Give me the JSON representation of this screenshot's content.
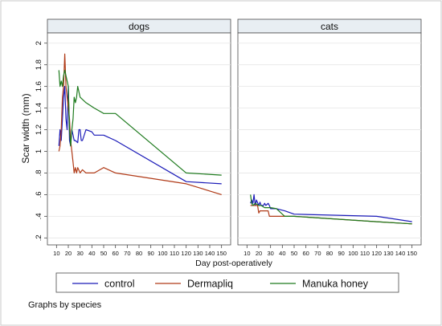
{
  "chart_data": {
    "type": "line",
    "ylabel": "Scar width (mm)",
    "xlabel": "Day post-operatively",
    "note": "Graphs by species",
    "xlim": [
      10,
      150
    ],
    "ylim": [
      0.2,
      2.0
    ],
    "x_ticks": [
      10,
      20,
      30,
      40,
      50,
      60,
      70,
      80,
      90,
      100,
      110,
      120,
      130,
      140,
      150
    ],
    "y_ticks": [
      0.2,
      0.4,
      0.6,
      0.8,
      1.0,
      1.2,
      1.4,
      1.6,
      1.8,
      2.0
    ],
    "y_tick_labels": [
      ".2",
      ".4",
      ".6",
      ".8",
      "1",
      "1.2",
      "1.4",
      "1.6",
      "1.8",
      "2"
    ],
    "grid": true,
    "legend_position": "bottom",
    "series_styles": [
      {
        "name": "control",
        "color": "#1a1ab8"
      },
      {
        "name": "Dermapliq",
        "color": "#b03a17"
      },
      {
        "name": "Manuka honey",
        "color": "#1d7a1d"
      }
    ],
    "panels": [
      {
        "title": "dogs",
        "series": [
          {
            "name": "control",
            "points": [
              [
                12,
                1.05
              ],
              [
                13,
                1.2
              ],
              [
                14,
                1.1
              ],
              [
                15,
                1.3
              ],
              [
                16,
                1.5
              ],
              [
                17,
                1.6
              ],
              [
                18,
                1.3
              ],
              [
                19,
                1.2
              ],
              [
                20,
                1.6
              ],
              [
                21,
                1.1
              ],
              [
                22,
                1.05
              ],
              [
                23,
                1.2
              ],
              [
                24,
                1.15
              ],
              [
                25,
                1.1
              ],
              [
                26,
                1.1
              ],
              [
                28,
                1.08
              ],
              [
                29,
                1.2
              ],
              [
                30,
                1.2
              ],
              [
                31,
                1.1
              ],
              [
                32,
                1.1
              ],
              [
                35,
                1.2
              ],
              [
                40,
                1.18
              ],
              [
                42,
                1.15
              ],
              [
                50,
                1.15
              ],
              [
                60,
                1.1
              ],
              [
                120,
                0.72
              ],
              [
                150,
                0.7
              ]
            ]
          },
          {
            "name": "Dermapliq",
            "points": [
              [
                12,
                1.0
              ],
              [
                13,
                1.05
              ],
              [
                14,
                1.2
              ],
              [
                15,
                1.5
              ],
              [
                16,
                1.6
              ],
              [
                17,
                1.9
              ],
              [
                18,
                1.6
              ],
              [
                19,
                1.5
              ],
              [
                20,
                1.4
              ],
              [
                21,
                1.3
              ],
              [
                22,
                1.1
              ],
              [
                23,
                1.0
              ],
              [
                24,
                0.9
              ],
              [
                25,
                0.8
              ],
              [
                26,
                0.85
              ],
              [
                27,
                0.8
              ],
              [
                28,
                0.85
              ],
              [
                30,
                0.8
              ],
              [
                32,
                0.83
              ],
              [
                35,
                0.8
              ],
              [
                42,
                0.8
              ],
              [
                50,
                0.85
              ],
              [
                60,
                0.8
              ],
              [
                120,
                0.7
              ],
              [
                150,
                0.6
              ]
            ]
          },
          {
            "name": "Manuka honey",
            "points": [
              [
                12,
                1.75
              ],
              [
                13,
                1.6
              ],
              [
                14,
                1.65
              ],
              [
                15,
                1.6
              ],
              [
                16,
                1.7
              ],
              [
                17,
                1.75
              ],
              [
                18,
                1.7
              ],
              [
                20,
                1.6
              ],
              [
                21,
                1.2
              ],
              [
                22,
                1.05
              ],
              [
                23,
                1.2
              ],
              [
                24,
                1.3
              ],
              [
                25,
                1.5
              ],
              [
                26,
                1.45
              ],
              [
                27,
                1.5
              ],
              [
                28,
                1.6
              ],
              [
                29,
                1.55
              ],
              [
                30,
                1.5
              ],
              [
                35,
                1.45
              ],
              [
                42,
                1.4
              ],
              [
                50,
                1.35
              ],
              [
                60,
                1.35
              ],
              [
                120,
                0.8
              ],
              [
                150,
                0.78
              ]
            ]
          }
        ]
      },
      {
        "title": "cats",
        "series": [
          {
            "name": "control",
            "points": [
              [
                13,
                0.52
              ],
              [
                14,
                0.55
              ],
              [
                15,
                0.52
              ],
              [
                16,
                0.6
              ],
              [
                17,
                0.5
              ],
              [
                18,
                0.55
              ],
              [
                20,
                0.5
              ],
              [
                21,
                0.53
              ],
              [
                22,
                0.5
              ],
              [
                24,
                0.5
              ],
              [
                25,
                0.52
              ],
              [
                26,
                0.5
              ],
              [
                28,
                0.52
              ],
              [
                29,
                0.5
              ],
              [
                30,
                0.47
              ],
              [
                35,
                0.47
              ],
              [
                42,
                0.45
              ],
              [
                50,
                0.42
              ],
              [
                120,
                0.4
              ],
              [
                150,
                0.35
              ]
            ]
          },
          {
            "name": "Dermapliq",
            "points": [
              [
                13,
                0.5
              ],
              [
                15,
                0.5
              ],
              [
                17,
                0.5
              ],
              [
                19,
                0.5
              ],
              [
                20,
                0.43
              ],
              [
                21,
                0.45
              ],
              [
                28,
                0.45
              ],
              [
                29,
                0.4
              ],
              [
                35,
                0.4
              ],
              [
                42,
                0.4
              ],
              [
                50,
                0.4
              ],
              [
                120,
                0.35
              ],
              [
                150,
                0.33
              ]
            ]
          },
          {
            "name": "Manuka honey",
            "points": [
              [
                13,
                0.6
              ],
              [
                14,
                0.52
              ],
              [
                15,
                0.5
              ],
              [
                17,
                0.52
              ],
              [
                20,
                0.5
              ],
              [
                22,
                0.5
              ],
              [
                25,
                0.48
              ],
              [
                28,
                0.48
              ],
              [
                30,
                0.48
              ],
              [
                35,
                0.47
              ],
              [
                42,
                0.4
              ],
              [
                50,
                0.4
              ],
              [
                120,
                0.35
              ],
              [
                150,
                0.33
              ]
            ]
          }
        ]
      }
    ]
  }
}
